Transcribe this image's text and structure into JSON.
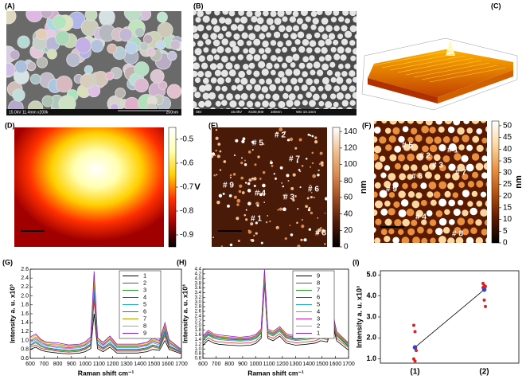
{
  "images": [
    {
      "panel": "(A)",
      "caption": [
        "15.0kV 11.4mm x200k",
        "200nm"
      ]
    },
    {
      "panel": "(B)",
      "caption": [
        "SEI",
        "15.0kV",
        "X100,000",
        "100nm",
        "WD 10.1mm"
      ]
    },
    {
      "panel": "(C)"
    }
  ],
  "chart_data": [
    {
      "type": "heatmap",
      "panel": "(D)",
      "colorbar_label": "V",
      "zlim": [
        -0.95,
        -0.45
      ],
      "zticks": [
        -0.5,
        -0.6,
        -0.7,
        -0.8,
        -0.9
      ],
      "colormap": [
        "#000000",
        "#a00000",
        "#ff3000",
        "#ffd000",
        "#ffffb0",
        "#ffffff"
      ]
    },
    {
      "type": "heatmap",
      "panel": "(E)",
      "colorbar_label": "nm",
      "zlim": [
        0,
        145
      ],
      "zticks": [
        0,
        20,
        40,
        60,
        80,
        100,
        120,
        140
      ],
      "colormap": [
        "#000000",
        "#4a1a08",
        "#9a4a20",
        "#d88a50",
        "#f0c090",
        "#ffffff"
      ],
      "annotations": [
        "# 2",
        "# 5",
        "# 7",
        "# 9",
        "# 4",
        "# 3",
        "# 6",
        "# 1",
        "# 8"
      ]
    },
    {
      "type": "heatmap",
      "panel": "(F)",
      "colorbar_label": "nm",
      "zlim": [
        0,
        52
      ],
      "zticks": [
        0,
        5,
        10,
        15,
        20,
        25,
        30,
        35,
        40,
        45,
        50
      ],
      "colormap": [
        "#000000",
        "#5a1a00",
        "#b05010",
        "#e89040",
        "#fcd8a0",
        "#ffffff"
      ],
      "annotations": [
        "# 5",
        "# 2",
        "# 1",
        "# 3",
        "# 6",
        "# 7",
        "# 9",
        "# 4",
        "# 8"
      ]
    },
    {
      "type": "line",
      "panel": "(G)",
      "xlabel": "Raman shift cm⁻¹",
      "ylabel": "Intensity a. u. x10³",
      "x": [
        600,
        640,
        680,
        720,
        800,
        880,
        960,
        1000,
        1040,
        1065,
        1090,
        1130,
        1180,
        1230,
        1300,
        1380,
        1450,
        1490,
        1540,
        1580,
        1610,
        1700
      ],
      "xlim": [
        600,
        1700
      ],
      "xticks": [
        600,
        700,
        800,
        900,
        1000,
        1100,
        1200,
        1300,
        1400,
        1500,
        1600,
        1700
      ],
      "ylim": [
        0.6,
        2.6
      ],
      "yticks": [
        0.6,
        0.8,
        {
          "value": 1,
          "label": "1.0"
        },
        1.2,
        1.4,
        1.6,
        1.8,
        {
          "value": 2,
          "label": "2.0"
        },
        2.2,
        2.4,
        2.6
      ],
      "series": [
        {
          "name": "1",
          "color": "#000000",
          "values": [
            0.8,
            0.85,
            0.78,
            0.75,
            0.72,
            0.7,
            0.72,
            0.75,
            0.82,
            1.6,
            0.82,
            0.75,
            0.85,
            0.72,
            0.72,
            0.72,
            0.75,
            0.8,
            0.78,
            1.0,
            0.8,
            0.7
          ]
        },
        {
          "name": "2",
          "color": "#e02020",
          "values": [
            0.85,
            0.9,
            0.82,
            0.8,
            0.76,
            0.74,
            0.76,
            0.8,
            0.88,
            1.9,
            0.86,
            0.8,
            0.9,
            0.76,
            0.76,
            0.76,
            0.8,
            0.86,
            0.82,
            1.1,
            0.84,
            0.72
          ]
        },
        {
          "name": "3",
          "color": "#20a020",
          "values": [
            0.88,
            0.95,
            0.86,
            0.82,
            0.78,
            0.76,
            0.78,
            0.82,
            0.9,
            2.0,
            0.9,
            0.82,
            0.92,
            0.78,
            0.78,
            0.78,
            0.82,
            0.88,
            0.84,
            1.15,
            0.86,
            0.74
          ]
        },
        {
          "name": "4",
          "color": "#2040c0",
          "values": [
            0.9,
            0.98,
            0.88,
            0.84,
            0.8,
            0.78,
            0.8,
            0.84,
            0.92,
            2.1,
            0.92,
            0.84,
            0.95,
            0.8,
            0.8,
            0.8,
            0.84,
            0.9,
            0.86,
            1.2,
            0.88,
            0.75
          ]
        },
        {
          "name": "5",
          "color": "#20b0c0",
          "values": [
            0.95,
            1.02,
            0.92,
            0.88,
            0.84,
            0.82,
            0.84,
            0.88,
            0.96,
            2.2,
            0.96,
            0.88,
            1.0,
            0.84,
            0.84,
            0.84,
            0.88,
            0.95,
            0.9,
            1.25,
            0.92,
            0.77
          ]
        },
        {
          "name": "6",
          "color": "#c020c0",
          "values": [
            0.98,
            1.05,
            0.95,
            0.9,
            0.86,
            0.84,
            0.86,
            0.9,
            1.0,
            2.3,
            1.0,
            0.9,
            1.03,
            0.86,
            0.86,
            0.86,
            0.9,
            0.98,
            0.93,
            1.3,
            0.95,
            0.78
          ]
        },
        {
          "name": "7",
          "color": "#a0a000",
          "values": [
            1.0,
            1.08,
            0.98,
            0.92,
            0.9,
            0.86,
            0.88,
            0.92,
            1.02,
            2.35,
            1.02,
            0.92,
            1.05,
            0.88,
            0.88,
            0.88,
            0.92,
            1.0,
            0.95,
            1.32,
            0.97,
            0.79
          ]
        },
        {
          "name": "8",
          "color": "#f09020",
          "values": [
            1.05,
            1.12,
            1.0,
            0.95,
            0.92,
            0.88,
            0.9,
            0.95,
            1.05,
            2.4,
            1.05,
            0.95,
            1.08,
            0.9,
            0.9,
            0.9,
            0.95,
            1.02,
            0.98,
            1.35,
            1.0,
            0.8
          ]
        },
        {
          "name": "9",
          "color": "#8020d0",
          "values": [
            1.08,
            1.15,
            1.02,
            0.96,
            0.95,
            0.9,
            0.92,
            0.97,
            1.08,
            2.55,
            1.06,
            0.96,
            1.1,
            0.92,
            0.92,
            0.92,
            0.96,
            1.05,
            1.0,
            1.4,
            1.02,
            0.8
          ]
        }
      ]
    },
    {
      "type": "line",
      "panel": "(H)",
      "xlabel": "Raman shift cm⁻¹",
      "ylabel": "Intensity a. u. x10³",
      "x": [
        600,
        640,
        680,
        720,
        800,
        880,
        960,
        1000,
        1040,
        1065,
        1090,
        1130,
        1180,
        1230,
        1300,
        1380,
        1450,
        1490,
        1540,
        1580,
        1610,
        1700
      ],
      "xlim": [
        600,
        1700
      ],
      "xticks": [
        600,
        700,
        800,
        900,
        1000,
        1100,
        1200,
        1300,
        1400,
        1500,
        1600,
        1700
      ],
      "ylim": [
        0.6,
        4.4
      ],
      "yticks": [
        0.6,
        0.8,
        {
          "value": 1,
          "label": "1.0"
        },
        1.2,
        1.4,
        1.6,
        1.8,
        {
          "value": 2,
          "label": "2.0"
        },
        2.2,
        2.4,
        2.6,
        2.8,
        {
          "value": 3,
          "label": "3.0"
        },
        3.2,
        3.4,
        3.6,
        3.8,
        {
          "value": 4,
          "label": "4.0"
        },
        4.2,
        4.4
      ],
      "series": [
        {
          "name": "9",
          "color": "#000000",
          "values": [
            1.15,
            1.38,
            1.25,
            1.2,
            1.16,
            1.14,
            1.16,
            1.24,
            1.45,
            3.8,
            1.45,
            1.35,
            1.55,
            1.25,
            1.16,
            1.2,
            1.25,
            1.35,
            1.3,
            2.05,
            1.35,
            0.95
          ]
        },
        {
          "name": "8",
          "color": "#e02020",
          "values": [
            1.25,
            1.48,
            1.35,
            1.3,
            1.26,
            1.24,
            1.26,
            1.34,
            1.55,
            3.85,
            1.55,
            1.45,
            1.65,
            1.35,
            1.26,
            1.3,
            1.35,
            1.45,
            1.4,
            2.15,
            1.45,
            1.05
          ]
        },
        {
          "name": "7",
          "color": "#20a020",
          "values": [
            1.35,
            1.58,
            1.45,
            1.4,
            1.36,
            1.34,
            1.36,
            1.44,
            1.65,
            3.95,
            1.65,
            1.55,
            1.75,
            1.45,
            1.36,
            1.4,
            1.45,
            1.55,
            1.5,
            2.25,
            1.55,
            1.1
          ]
        },
        {
          "name": "6",
          "color": "#2040c0",
          "values": [
            1.4,
            1.62,
            1.5,
            1.45,
            1.4,
            1.38,
            1.4,
            1.48,
            1.7,
            4.0,
            1.7,
            1.6,
            1.8,
            1.5,
            1.4,
            1.45,
            1.5,
            1.6,
            1.55,
            2.3,
            1.6,
            1.12
          ]
        },
        {
          "name": "5",
          "color": "#20b0c0",
          "values": [
            1.42,
            1.66,
            1.52,
            1.47,
            1.42,
            1.4,
            1.43,
            1.5,
            1.72,
            4.1,
            1.72,
            1.62,
            1.82,
            1.52,
            1.43,
            1.47,
            1.52,
            1.62,
            1.57,
            2.35,
            1.62,
            1.15
          ]
        },
        {
          "name": "4",
          "color": "#a0a000",
          "values": [
            1.45,
            1.7,
            1.55,
            1.5,
            1.45,
            1.42,
            1.46,
            1.54,
            1.75,
            4.2,
            1.75,
            1.65,
            1.85,
            1.55,
            1.46,
            1.5,
            1.55,
            1.65,
            1.6,
            2.4,
            1.65,
            1.18
          ]
        },
        {
          "name": "3",
          "color": "#c020c0",
          "values": [
            1.48,
            1.72,
            1.58,
            1.52,
            1.48,
            1.44,
            1.48,
            1.56,
            1.78,
            4.25,
            1.78,
            1.68,
            1.88,
            1.58,
            1.48,
            1.53,
            1.58,
            1.68,
            1.63,
            2.45,
            1.68,
            1.2
          ]
        },
        {
          "name": "2",
          "color": "#f09020",
          "values": [
            1.5,
            1.75,
            1.6,
            1.55,
            1.5,
            1.46,
            1.5,
            1.58,
            1.8,
            4.3,
            1.8,
            1.7,
            1.9,
            1.6,
            1.5,
            1.55,
            1.6,
            1.7,
            1.65,
            2.5,
            1.7,
            1.22
          ]
        },
        {
          "name": "1",
          "color": "#8020d0",
          "values": [
            1.55,
            1.8,
            1.65,
            1.6,
            1.55,
            1.5,
            1.55,
            1.62,
            1.85,
            4.4,
            1.85,
            1.75,
            1.95,
            1.65,
            1.55,
            1.6,
            1.65,
            1.75,
            1.7,
            2.55,
            1.75,
            1.25
          ]
        }
      ]
    },
    {
      "type": "dot",
      "panel": "(I)",
      "ylabel": "Intensity a. u. x10³",
      "categories": [
        "(1)",
        "(2)"
      ],
      "ylim": [
        0.8,
        5.2
      ],
      "yticks": [
        {
          "value": 1,
          "label": "1.0"
        },
        {
          "value": 2,
          "label": "2.0"
        },
        {
          "value": 3,
          "label": "3.0"
        },
        {
          "value": 4,
          "label": "4.0"
        },
        {
          "value": 5,
          "label": "5.0"
        }
      ],
      "points": [
        [
          2.6,
          2.3,
          1.4,
          1.0,
          0.9
        ],
        [
          4.6,
          4.5,
          4.45,
          4.4,
          3.8,
          3.5
        ]
      ],
      "point_color": "#e02020",
      "means": [
        1.55,
        4.3
      ],
      "mean_color": "#4040c0",
      "line_color": "#000000"
    }
  ]
}
